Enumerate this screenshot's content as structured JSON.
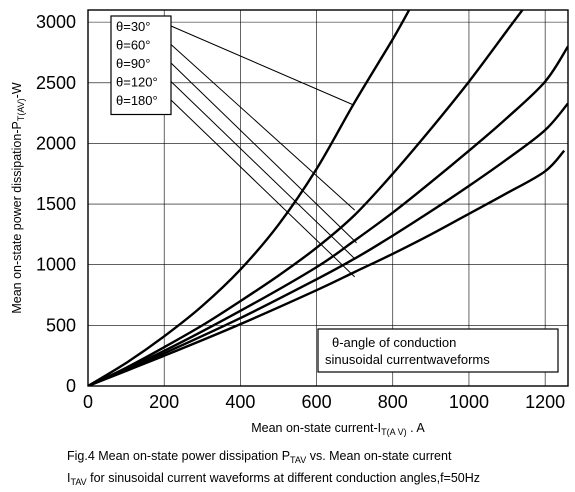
{
  "chart_data": {
    "type": "line",
    "title": "",
    "xlabel": "Mean on-state current-I",
    "xlabel_sub": "T(A V)",
    "xlabel_tail": " . A",
    "ylabel": "Mean on-state power dissipation-P",
    "ylabel_sub": "T(AV)",
    "ylabel_tail": "-W",
    "xlim": [
      0,
      1260
    ],
    "ylim": [
      0,
      3100
    ],
    "xticks": [
      0,
      200,
      400,
      600,
      800,
      1000,
      1200
    ],
    "yticks": [
      0,
      500,
      1000,
      1500,
      2000,
      2500,
      3000
    ],
    "grid": true,
    "legend_position": "top-left",
    "series": [
      {
        "name": "θ=30°",
        "x": [
          0,
          100,
          200,
          300,
          400,
          500,
          600,
          700,
          800,
          850
        ],
        "y": [
          0,
          190,
          410,
          660,
          960,
          1330,
          1790,
          2340,
          2860,
          3140
        ]
      },
      {
        "name": "θ=60°",
        "x": [
          0,
          100,
          200,
          300,
          400,
          500,
          600,
          700,
          800,
          900,
          1000,
          1100,
          1150
        ],
        "y": [
          0,
          150,
          320,
          500,
          700,
          910,
          1140,
          1410,
          1750,
          2120,
          2510,
          2930,
          3140
        ]
      },
      {
        "name": "θ=90°",
        "x": [
          0,
          200,
          400,
          600,
          700,
          800,
          900,
          1000,
          1100,
          1200,
          1260
        ],
        "y": [
          0,
          290,
          620,
          980,
          1200,
          1430,
          1680,
          1940,
          2210,
          2510,
          2800
        ]
      },
      {
        "name": "θ=120°",
        "x": [
          0,
          200,
          400,
          600,
          700,
          800,
          900,
          1000,
          1100,
          1200,
          1260
        ],
        "y": [
          0,
          270,
          560,
          880,
          1050,
          1240,
          1440,
          1650,
          1870,
          2110,
          2330
        ]
      },
      {
        "name": "θ=180°",
        "x": [
          0,
          200,
          400,
          600,
          700,
          800,
          900,
          1000,
          1100,
          1200,
          1250
        ],
        "y": [
          0,
          250,
          510,
          790,
          940,
          1090,
          1250,
          1420,
          1590,
          1770,
          1940
        ]
      }
    ],
    "leader_targets": [
      {
        "label": "θ=30°",
        "x": 695,
        "y": 2320
      },
      {
        "label": "θ=60°",
        "x": 700,
        "y": 1450
      },
      {
        "label": "θ=90°",
        "x": 705,
        "y": 1180
      },
      {
        "label": "θ=120°",
        "x": 700,
        "y": 1050
      },
      {
        "label": "θ=180°",
        "x": 700,
        "y": 900
      }
    ],
    "annotation": [
      "θ-angle of conduction",
      "sinusoidal currentwaveforms"
    ],
    "line_color": "#000000"
  },
  "caption": {
    "line1_a": "Fig.4 Mean on-state power dissipation P",
    "line1_sub": "TAV",
    "line1_b": " vs. Mean on-state current",
    "line2_a": "I",
    "line2_sub": "TAV",
    "line2_b": " for sinusoidal current waveforms at different conduction angles,f=50Hz"
  }
}
